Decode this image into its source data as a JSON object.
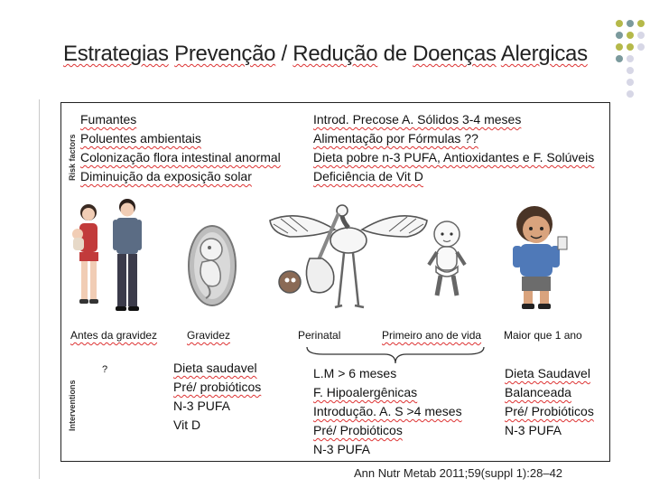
{
  "title": {
    "segments": [
      "Estrategias",
      " ",
      "Prevenção",
      " / ",
      "Redução",
      " de ",
      "Doenças",
      " ",
      "Alergicas"
    ]
  },
  "panel": {
    "risk_label": "Risk factors",
    "interventions_label": "Interventions",
    "risk_left": [
      "Fumantes",
      "Poluentes ambientais",
      "Colonização flora intestinal anormal",
      "Diminuição da exposição solar"
    ],
    "risk_right": [
      "Introd. Precose A. Sólidos 3-4 meses",
      "Alimentação por Fórmulas ??",
      "Dieta pobre n-3 PUFA, Antioxidantes e F. Solúveis",
      "Deficiência de Vit D"
    ],
    "stages": [
      "Antes da gravidez",
      "Gravidez",
      "Perinatal",
      "Primeiro ano de vida",
      "Maior que 1 ano"
    ],
    "interventions": {
      "before_pregnancy": "?",
      "pregnancy": [
        "Dieta saudavel",
        "Pré/ probióticos",
        "N-3 PUFA",
        "Vit D"
      ],
      "first_year": [
        "L.M > 6 meses",
        "F. Hipoalergênicas",
        "Introdução. A. S >4 meses",
        "Pré/ Probióticos",
        "N-3 PUFA"
      ],
      "older": [
        "Dieta Saudavel",
        "Balanceada",
        "Pré/ Probióticos",
        "N-3 PUFA"
      ]
    }
  },
  "citation": "Ann Nutr Metab 2011;59(suppl 1):28–42",
  "colors": {
    "dot_green": "#b5b94a",
    "dot_teal": "#7b9a9d",
    "dot_lavender": "#d7d7e6",
    "accent_underline": "#d33333"
  }
}
